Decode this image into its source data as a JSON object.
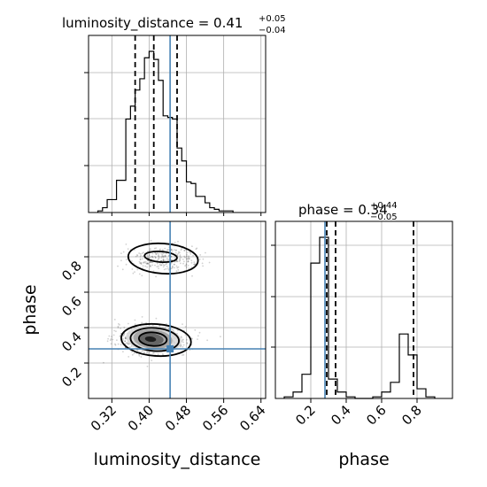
{
  "chart_data": {
    "type": "corner",
    "parameters": [
      "luminosity_distance",
      "phase"
    ],
    "truth": {
      "luminosity_distance": 0.445,
      "phase": 0.28
    },
    "titles": {
      "luminosity_distance": {
        "main": "luminosity_distance = 0.41",
        "plus": "+0.05",
        "minus": "−0.04"
      },
      "phase": {
        "main": "phase = 0.34",
        "plus": "+0.44",
        "minus": "−0.05"
      }
    },
    "axis_labels": {
      "x": [
        "luminosity_distance",
        "phase"
      ],
      "y": "phase"
    },
    "luminosity_distance_axis": {
      "range": [
        0.27,
        0.65
      ],
      "ticks": [
        "0.32",
        "0.40",
        "0.48",
        "0.56",
        "0.64"
      ]
    },
    "phase_axis": {
      "range": [
        0.0,
        1.0
      ],
      "ticks": [
        "0.2",
        "0.4",
        "0.6",
        "0.8"
      ]
    },
    "luminosity_distance_hist": {
      "bin_edges": [
        0.29,
        0.3,
        0.31,
        0.32,
        0.33,
        0.34,
        0.35,
        0.36,
        0.37,
        0.38,
        0.39,
        0.4,
        0.41,
        0.42,
        0.43,
        0.44,
        0.45,
        0.46,
        0.47,
        0.48,
        0.49,
        0.5,
        0.51,
        0.52,
        0.53,
        0.54,
        0.55,
        0.56,
        0.57,
        0.58
      ],
      "counts": [
        0.01,
        0.03,
        0.08,
        0.08,
        0.2,
        0.2,
        0.58,
        0.66,
        0.76,
        0.83,
        0.96,
        1.0,
        0.95,
        0.82,
        0.6,
        0.59,
        0.58,
        0.4,
        0.32,
        0.19,
        0.18,
        0.1,
        0.1,
        0.06,
        0.03,
        0.02,
        0.01,
        0.01,
        0.01
      ],
      "quantiles": [
        0.37,
        0.41,
        0.46
      ]
    },
    "phase_hist": {
      "bin_edges": [
        0.05,
        0.1,
        0.15,
        0.2,
        0.25,
        0.3,
        0.35,
        0.4,
        0.45,
        0.5,
        0.55,
        0.6,
        0.65,
        0.7,
        0.75,
        0.8,
        0.85,
        0.9
      ],
      "counts": [
        0.01,
        0.04,
        0.15,
        0.84,
        1.0,
        0.12,
        0.04,
        0.01,
        0.0,
        0.0,
        0.01,
        0.04,
        0.1,
        0.4,
        0.27,
        0.06,
        0.01
      ],
      "quantiles": [
        0.29,
        0.34,
        0.78
      ]
    }
  }
}
